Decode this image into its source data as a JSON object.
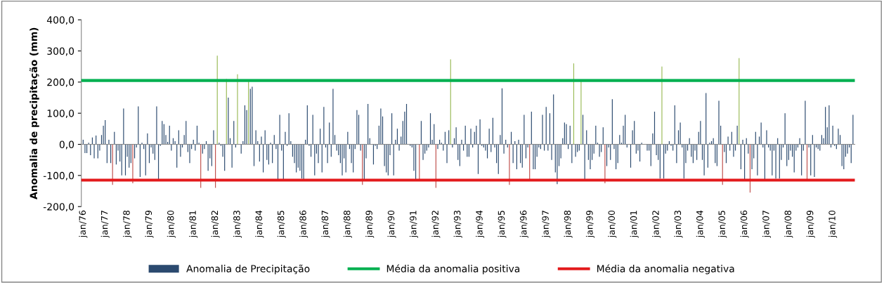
{
  "chart_data": {
    "type": "bar",
    "ylabel": "Anomalia de precipitação (mm)",
    "categories": [
      "jan/76",
      null,
      null,
      null,
      null,
      null,
      null,
      null,
      null,
      null,
      null,
      null,
      "jan/77",
      null,
      null,
      null,
      null,
      null,
      null,
      null,
      null,
      null,
      null,
      null,
      "jan/78",
      null,
      null,
      null,
      null,
      null,
      null,
      null,
      null,
      null,
      null,
      null,
      "jan/79",
      null,
      null,
      null,
      null,
      null,
      null,
      null,
      null,
      null,
      null,
      null,
      "jan/80",
      null,
      null,
      null,
      null,
      null,
      null,
      null,
      null,
      null,
      null,
      null,
      "jan/81",
      null,
      null,
      null,
      null,
      null,
      null,
      null,
      null,
      null,
      null,
      null,
      "jan/82",
      null,
      null,
      null,
      null,
      null,
      null,
      null,
      null,
      null,
      null,
      null,
      "jan/83",
      null,
      null,
      null,
      null,
      null,
      null,
      null,
      null,
      null,
      null,
      null,
      "jan/84",
      null,
      null,
      null,
      null,
      null,
      null,
      null,
      null,
      null,
      null,
      null,
      "jan/85",
      null,
      null,
      null,
      null,
      null,
      null,
      null,
      null,
      null,
      null,
      null,
      "jan/86",
      null,
      null,
      null,
      null,
      null,
      null,
      null,
      null,
      null,
      null,
      null,
      "jan/87",
      null,
      null,
      null,
      null,
      null,
      null,
      null,
      null,
      null,
      null,
      null,
      "jan/88",
      null,
      null,
      null,
      null,
      null,
      null,
      null,
      null,
      null,
      null,
      null,
      "jan/89",
      null,
      null,
      null,
      null,
      null,
      null,
      null,
      null,
      null,
      null,
      null,
      "jan/90",
      null,
      null,
      null,
      null,
      null,
      null,
      null,
      null,
      null,
      null,
      null,
      "jan/91",
      null,
      null,
      null,
      null,
      null,
      null,
      null,
      null,
      null,
      null,
      null,
      "jan/92",
      null,
      null,
      null,
      null,
      null,
      null,
      null,
      null,
      null,
      null,
      null,
      "jan/93",
      null,
      null,
      null,
      null,
      null,
      null,
      null,
      null,
      null,
      null,
      null,
      "jan/94",
      null,
      null,
      null,
      null,
      null,
      null,
      null,
      null,
      null,
      null,
      null,
      "jan/95",
      null,
      null,
      null,
      null,
      null,
      null,
      null,
      null,
      null,
      null,
      null,
      "jan/96",
      null,
      null,
      null,
      null,
      null,
      null,
      null,
      null,
      null,
      null,
      null,
      "jan/97",
      null,
      null,
      null,
      null,
      null,
      null,
      null,
      null,
      null,
      null,
      null,
      "jan/98",
      null,
      null,
      null,
      null,
      null,
      null,
      null,
      null,
      null,
      null,
      null,
      "jan/99",
      null,
      null,
      null,
      null,
      null,
      null,
      null,
      null,
      null,
      null,
      null,
      "jan/00",
      null,
      null,
      null,
      null,
      null,
      null,
      null,
      null,
      null,
      null,
      null,
      "jan/01",
      null,
      null,
      null,
      null,
      null,
      null,
      null,
      null,
      null,
      null,
      null,
      "jan/02",
      null,
      null,
      null,
      null,
      null,
      null,
      null,
      null,
      null,
      null,
      null,
      "jan/03",
      null,
      null,
      null,
      null,
      null,
      null,
      null,
      null,
      null,
      null,
      null,
      "jan/04",
      null,
      null,
      null,
      null,
      null,
      null,
      null,
      null,
      null,
      null,
      null,
      "jan/05",
      null,
      null,
      null,
      null,
      null,
      null,
      null,
      null,
      null,
      null,
      null,
      "jan/06",
      null,
      null,
      null,
      null,
      null,
      null,
      null,
      null,
      null,
      null,
      null,
      "jan/07",
      null,
      null,
      null,
      null,
      null,
      null,
      null,
      null,
      null,
      null,
      null,
      "jan/08",
      null,
      null,
      null,
      null,
      null,
      null,
      null,
      null,
      null,
      null,
      null,
      "jan/09",
      null,
      null,
      null,
      null,
      null,
      null,
      null,
      null,
      null,
      null,
      null,
      "jan/10",
      null,
      null,
      null,
      null,
      null,
      null,
      null,
      null,
      null,
      null,
      null
    ],
    "series": [
      {
        "name": "Anomalia de Precipitação",
        "color": "#2b4a6f",
        "values": [
          15,
          -28,
          -28,
          5,
          -35,
          22,
          -45,
          28,
          -45,
          -20,
          30,
          60,
          78,
          -60,
          15,
          -60,
          -130,
          40,
          -65,
          -20,
          -55,
          -100,
          115,
          -100,
          -40,
          -75,
          -60,
          -125,
          -45,
          -10,
          122,
          -105,
          5,
          -15,
          -100,
          35,
          -60,
          -10,
          -30,
          -50,
          122,
          -115,
          -5,
          75,
          65,
          30,
          8,
          60,
          -20,
          20,
          10,
          -75,
          45,
          -40,
          -10,
          30,
          75,
          -25,
          -60,
          -15,
          15,
          -20,
          60,
          5,
          -140,
          -30,
          -15,
          10,
          -85,
          -45,
          -70,
          45,
          -140,
          285,
          5,
          -5,
          -40,
          -85,
          210,
          150,
          20,
          -75,
          75,
          -10,
          225,
          0,
          -30,
          10,
          125,
          110,
          205,
          178,
          185,
          -70,
          45,
          10,
          -55,
          25,
          -90,
          45,
          -50,
          -65,
          5,
          -60,
          30,
          -15,
          -115,
          95,
          -20,
          -115,
          40,
          -5,
          100,
          10,
          -40,
          -60,
          -90,
          -75,
          -85,
          -110,
          -115,
          15,
          125,
          -5,
          -40,
          95,
          -100,
          -30,
          -60,
          50,
          -90,
          120,
          -10,
          -60,
          70,
          -40,
          178,
          30,
          -20,
          -35,
          -60,
          -100,
          -45,
          -90,
          40,
          -15,
          -60,
          -90,
          -15,
          110,
          95,
          -20,
          -130,
          -115,
          -45,
          130,
          20,
          0,
          -65,
          -5,
          -15,
          60,
          115,
          90,
          -70,
          -90,
          -100,
          -35,
          100,
          -100,
          15,
          50,
          -20,
          25,
          75,
          105,
          130,
          0,
          -5,
          -10,
          -85,
          -115,
          0,
          -115,
          75,
          -50,
          -30,
          -20,
          -10,
          100,
          15,
          65,
          -140,
          -15,
          15,
          5,
          -20,
          40,
          -60,
          45,
          273,
          -10,
          20,
          55,
          -50,
          -70,
          15,
          -20,
          60,
          -40,
          -40,
          50,
          -10,
          40,
          60,
          -95,
          80,
          -5,
          -10,
          -20,
          -45,
          50,
          -25,
          85,
          -10,
          -60,
          -95,
          30,
          180,
          -30,
          15,
          -10,
          -130,
          40,
          -60,
          10,
          -80,
          15,
          -60,
          -75,
          95,
          -45,
          -10,
          -115,
          105,
          -80,
          -80,
          -40,
          -10,
          -15,
          95,
          -20,
          120,
          -20,
          100,
          -50,
          160,
          -90,
          -128,
          -70,
          -45,
          20,
          70,
          65,
          -15,
          60,
          -60,
          260,
          -40,
          -25,
          -20,
          205,
          95,
          -115,
          45,
          -50,
          -80,
          -50,
          -30,
          60,
          5,
          -40,
          -25,
          55,
          -125,
          -70,
          -10,
          -50,
          145,
          -15,
          -80,
          -60,
          30,
          5,
          60,
          95,
          -10,
          0,
          -75,
          45,
          75,
          -30,
          -20,
          -55,
          5,
          0,
          0,
          -20,
          -20,
          -70,
          35,
          105,
          -35,
          -50,
          -110,
          250,
          -110,
          -30,
          -20,
          10,
          -5,
          -20,
          125,
          -60,
          45,
          70,
          -10,
          -110,
          -60,
          -20,
          20,
          -40,
          -60,
          -20,
          -50,
          40,
          75,
          -50,
          -100,
          165,
          -75,
          5,
          10,
          20,
          -60,
          -70,
          140,
          60,
          -130,
          -25,
          -60,
          25,
          -20,
          40,
          -40,
          -20,
          60,
          277,
          -80,
          15,
          -115,
          20,
          -30,
          -155,
          -80,
          -45,
          40,
          -100,
          25,
          70,
          -10,
          -115,
          45,
          -10,
          -20,
          -100,
          -20,
          -110,
          20,
          -110,
          -50,
          -10,
          100,
          -70,
          -50,
          -20,
          -40,
          -90,
          -20,
          -10,
          20,
          -100,
          -20,
          140,
          -115,
          -10,
          -100,
          30,
          -105,
          -10,
          -15,
          -20,
          30,
          20,
          120,
          55,
          125,
          -10,
          60,
          -5,
          -15,
          50,
          30,
          -70,
          -80,
          -40,
          -30,
          -10,
          -60,
          95
        ],
        "colors": [
          "#2b4a6f",
          "#2b4a6f",
          "#2b4a6f",
          "#2b4a6f",
          "#2b4a6f",
          "#2b4a6f",
          "#2b4a6f",
          "#2b4a6f",
          "#2b4a6f",
          "#2b4a6f",
          "#2b4a6f",
          "#2b4a6f",
          "#2b4a6f",
          "#2b4a6f",
          "#2b4a6f",
          "#2b4a6f",
          "#c0504d",
          "#2b4a6f",
          "#2b4a6f",
          "#2b4a6f",
          "#2b4a6f",
          "#2b4a6f",
          "#2b4a6f",
          "#2b4a6f",
          "#2b4a6f",
          "#2b4a6f",
          "#2b4a6f",
          "#c0504d",
          "#2b4a6f",
          "#2b4a6f",
          "#2b4a6f",
          "#2b4a6f",
          "#2b4a6f",
          "#2b4a6f",
          "#2b4a6f",
          "#2b4a6f",
          "#2b4a6f",
          "#2b4a6f",
          "#2b4a6f",
          "#2b4a6f",
          "#2b4a6f",
          "#2b4a6f",
          "#2b4a6f",
          "#2b4a6f",
          "#2b4a6f",
          "#2b4a6f",
          "#2b4a6f",
          "#2b4a6f",
          "#2b4a6f",
          "#2b4a6f",
          "#2b4a6f",
          "#2b4a6f",
          "#2b4a6f",
          "#2b4a6f",
          "#2b4a6f",
          "#2b4a6f",
          "#2b4a6f",
          "#2b4a6f",
          "#2b4a6f",
          "#2b4a6f",
          "#2b4a6f",
          "#2b4a6f",
          "#2b4a6f",
          "#2b4a6f",
          "#c0504d",
          "#2b4a6f",
          "#2b4a6f",
          "#2b4a6f",
          "#2b4a6f",
          "#2b4a6f",
          "#2b4a6f",
          "#2b4a6f",
          "#c0504d",
          "#9bbb59",
          "#2b4a6f",
          "#2b4a6f",
          "#2b4a6f",
          "#2b4a6f",
          "#9bbb59",
          "#2b4a6f",
          "#2b4a6f",
          "#2b4a6f",
          "#2b4a6f",
          "#2b4a6f",
          "#9bbb59",
          "#2b4a6f",
          "#2b4a6f",
          "#2b4a6f",
          "#2b4a6f",
          "#2b4a6f",
          "#9bbb59",
          "#2b4a6f",
          "#2b4a6f",
          "#2b4a6f",
          "#2b4a6f",
          "#2b4a6f",
          "#2b4a6f",
          "#2b4a6f",
          "#2b4a6f",
          "#2b4a6f",
          "#2b4a6f",
          "#2b4a6f",
          "#2b4a6f",
          "#2b4a6f",
          "#2b4a6f",
          "#2b4a6f",
          "#2b4a6f",
          "#2b4a6f",
          "#2b4a6f",
          "#2b4a6f",
          "#2b4a6f",
          "#2b4a6f",
          "#2b4a6f",
          "#2b4a6f",
          "#2b4a6f",
          "#2b4a6f",
          "#2b4a6f",
          "#2b4a6f",
          "#2b4a6f",
          "#2b4a6f",
          "#2b4a6f",
          "#2b4a6f",
          "#2b4a6f",
          "#2b4a6f",
          "#2b4a6f",
          "#2b4a6f",
          "#2b4a6f",
          "#2b4a6f",
          "#2b4a6f",
          "#2b4a6f",
          "#2b4a6f",
          "#2b4a6f",
          "#2b4a6f",
          "#2b4a6f",
          "#2b4a6f",
          "#2b4a6f",
          "#2b4a6f",
          "#2b4a6f",
          "#2b4a6f",
          "#2b4a6f",
          "#2b4a6f",
          "#2b4a6f",
          "#2b4a6f",
          "#2b4a6f",
          "#2b4a6f",
          "#2b4a6f",
          "#2b4a6f",
          "#2b4a6f",
          "#2b4a6f",
          "#2b4a6f",
          "#2b4a6f",
          "#2b4a6f",
          "#c0504d",
          "#2b4a6f",
          "#2b4a6f",
          "#2b4a6f",
          "#2b4a6f",
          "#2b4a6f",
          "#2b4a6f",
          "#2b4a6f",
          "#2b4a6f",
          "#2b4a6f",
          "#2b4a6f",
          "#2b4a6f",
          "#2b4a6f",
          "#2b4a6f",
          "#2b4a6f",
          "#2b4a6f",
          "#2b4a6f",
          "#2b4a6f",
          "#2b4a6f",
          "#2b4a6f",
          "#2b4a6f",
          "#2b4a6f",
          "#2b4a6f",
          "#2b4a6f",
          "#2b4a6f",
          "#2b4a6f",
          "#2b4a6f",
          "#2b4a6f",
          "#2b4a6f",
          "#2b4a6f",
          "#2b4a6f",
          "#c0504d",
          "#2b4a6f",
          "#2b4a6f",
          "#2b4a6f",
          "#2b4a6f",
          "#2b4a6f",
          "#2b4a6f",
          "#2b4a6f",
          "#2b4a6f",
          "#c0504d",
          "#2b4a6f",
          "#2b4a6f",
          "#2b4a6f",
          "#2b4a6f",
          "#2b4a6f",
          "#2b4a6f",
          "#2b4a6f",
          "#9bbb59",
          "#2b4a6f",
          "#2b4a6f",
          "#2b4a6f",
          "#2b4a6f",
          "#2b4a6f",
          "#2b4a6f",
          "#2b4a6f",
          "#2b4a6f",
          "#2b4a6f",
          "#2b4a6f",
          "#2b4a6f",
          "#2b4a6f",
          "#2b4a6f",
          "#2b4a6f",
          "#2b4a6f",
          "#2b4a6f",
          "#2b4a6f",
          "#2b4a6f",
          "#2b4a6f",
          "#2b4a6f",
          "#2b4a6f",
          "#2b4a6f",
          "#2b4a6f",
          "#2b4a6f",
          "#2b4a6f",
          "#2b4a6f",
          "#2b4a6f",
          "#2b4a6f",
          "#2b4a6f",
          "#2b4a6f",
          "#2b4a6f",
          "#c0504d",
          "#2b4a6f",
          "#2b4a6f",
          "#2b4a6f",
          "#2b4a6f",
          "#2b4a6f",
          "#2b4a6f",
          "#2b4a6f",
          "#2b4a6f",
          "#2b4a6f",
          "#2b4a6f",
          "#c0504d",
          "#2b4a6f",
          "#2b4a6f",
          "#2b4a6f",
          "#2b4a6f",
          "#2b4a6f",
          "#2b4a6f",
          "#2b4a6f",
          "#2b4a6f",
          "#2b4a6f",
          "#2b4a6f",
          "#2b4a6f",
          "#2b4a6f",
          "#2b4a6f",
          "#2b4a6f",
          "#2b4a6f",
          "#2b4a6f",
          "#2b4a6f",
          "#2b4a6f",
          "#2b4a6f",
          "#2b4a6f",
          "#2b4a6f",
          "#2b4a6f",
          "#2b4a6f",
          "#9bbb59",
          "#2b4a6f",
          "#2b4a6f",
          "#2b4a6f",
          "#9bbb59",
          "#2b4a6f",
          "#2b4a6f",
          "#2b4a6f",
          "#2b4a6f",
          "#2b4a6f",
          "#2b4a6f",
          "#2b4a6f",
          "#2b4a6f",
          "#2b4a6f",
          "#2b4a6f",
          "#2b4a6f",
          "#2b4a6f",
          "#c0504d",
          "#2b4a6f",
          "#2b4a6f",
          "#2b4a6f",
          "#2b4a6f",
          "#2b4a6f",
          "#2b4a6f",
          "#2b4a6f",
          "#2b4a6f",
          "#2b4a6f",
          "#2b4a6f",
          "#2b4a6f",
          "#2b4a6f",
          "#2b4a6f",
          "#2b4a6f",
          "#2b4a6f",
          "#2b4a6f",
          "#2b4a6f",
          "#2b4a6f",
          "#2b4a6f",
          "#2b4a6f",
          "#2b4a6f",
          "#2b4a6f",
          "#2b4a6f",
          "#2b4a6f",
          "#2b4a6f",
          "#2b4a6f",
          "#2b4a6f",
          "#2b4a6f",
          "#2b4a6f",
          "#2b4a6f",
          "#9bbb59",
          "#2b4a6f",
          "#2b4a6f",
          "#2b4a6f",
          "#2b4a6f",
          "#2b4a6f",
          "#2b4a6f",
          "#2b4a6f",
          "#2b4a6f",
          "#2b4a6f",
          "#2b4a6f",
          "#2b4a6f",
          "#2b4a6f",
          "#2b4a6f",
          "#2b4a6f",
          "#2b4a6f",
          "#2b4a6f",
          "#2b4a6f",
          "#2b4a6f",
          "#2b4a6f",
          "#2b4a6f",
          "#2b4a6f",
          "#2b4a6f",
          "#2b4a6f",
          "#2b4a6f",
          "#2b4a6f",
          "#2b4a6f",
          "#2b4a6f",
          "#2b4a6f",
          "#2b4a6f",
          "#2b4a6f",
          "#2b4a6f",
          "#2b4a6f",
          "#c0504d",
          "#2b4a6f",
          "#2b4a6f",
          "#2b4a6f",
          "#2b4a6f",
          "#2b4a6f",
          "#2b4a6f",
          "#2b4a6f",
          "#2b4a6f",
          "#9bbb59",
          "#2b4a6f",
          "#2b4a6f",
          "#2b4a6f",
          "#2b4a6f",
          "#2b4a6f",
          "#c0504d",
          "#2b4a6f",
          "#2b4a6f",
          "#2b4a6f",
          "#2b4a6f",
          "#2b4a6f",
          "#2b4a6f",
          "#2b4a6f",
          "#2b4a6f",
          "#2b4a6f",
          "#2b4a6f",
          "#2b4a6f",
          "#2b4a6f",
          "#2b4a6f",
          "#2b4a6f",
          "#2b4a6f",
          "#2b4a6f",
          "#2b4a6f",
          "#2b4a6f",
          "#2b4a6f",
          "#2b4a6f",
          "#2b4a6f",
          "#2b4a6f",
          "#2b4a6f",
          "#2b4a6f",
          "#2b4a6f",
          "#2b4a6f",
          "#2b4a6f",
          "#2b4a6f",
          "#2b4a6f",
          "#2b4a6f",
          "#c0504d",
          "#2b4a6f",
          "#2b4a6f",
          "#2b4a6f",
          "#2b4a6f",
          "#2b4a6f",
          "#2b4a6f",
          "#2b4a6f",
          "#2b4a6f",
          "#2b4a6f",
          "#2b4a6f",
          "#2b4a6f",
          "#2b4a6f",
          "#2b4a6f",
          "#2b4a6f",
          "#2b4a6f",
          "#2b4a6f",
          "#2b4a6f",
          "#2b4a6f",
          "#2b4a6f",
          "#2b4a6f",
          "#2b4a6f",
          "#2b4a6f",
          "#2b4a6f",
          "#2b4a6f",
          "#2b4a6f"
        ]
      }
    ],
    "ref_lines": [
      {
        "axis": "y",
        "value": 205,
        "label": "Média da anomalia positiva",
        "color": "#00b050"
      },
      {
        "axis": "y",
        "value": -115,
        "label": "Média da anomalia negativa",
        "color": "#e31a1c"
      }
    ],
    "ylim": [
      -200,
      400
    ],
    "yticks": [
      {
        "value": -200,
        "label": "-200,0"
      },
      {
        "value": -100,
        "label": "-100,0"
      },
      {
        "value": 0,
        "label": "0,0"
      },
      {
        "value": 100,
        "label": "100,0"
      },
      {
        "value": 200,
        "label": "200,0"
      },
      {
        "value": 300,
        "label": "300,0"
      },
      {
        "value": 400,
        "label": "400,0"
      }
    ],
    "legend": "bottom"
  }
}
